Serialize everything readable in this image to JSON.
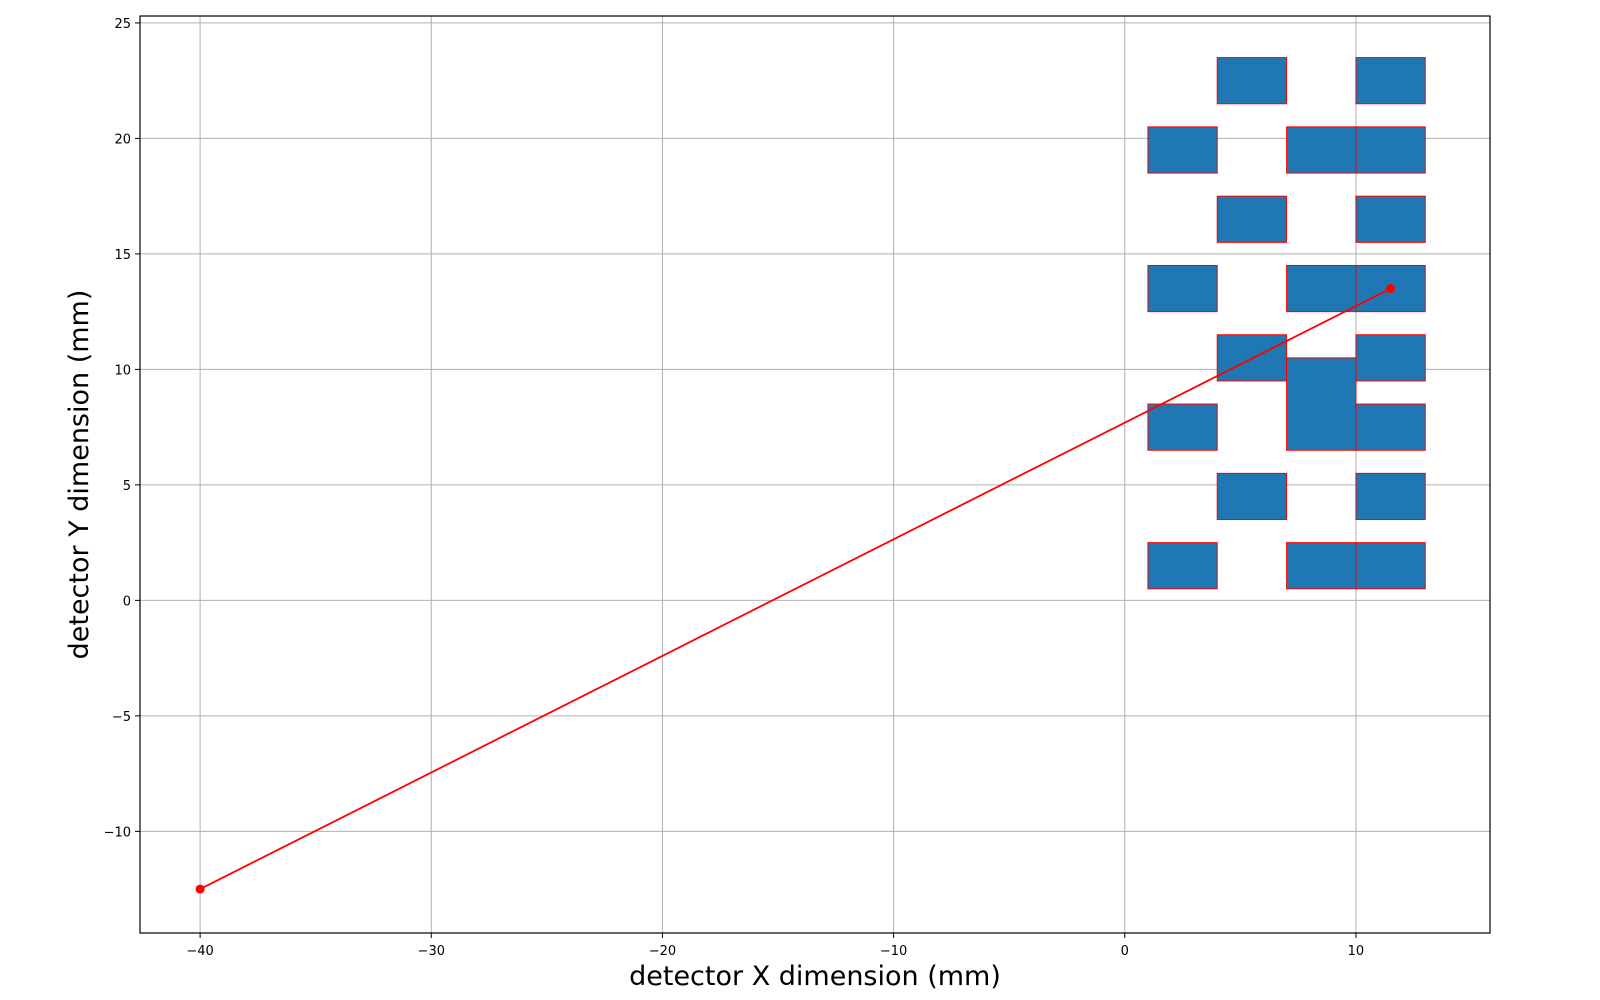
{
  "chart_data": {
    "type": "scatter",
    "title": "",
    "xlabel": "detector X dimension (mm)",
    "ylabel": "detector Y dimension (mm)",
    "xlim": [
      -42.6,
      15.8
    ],
    "ylim": [
      -14.4,
      25.3
    ],
    "grid": true,
    "xticks": [
      {
        "value": -40,
        "label": "−40"
      },
      {
        "value": -30,
        "label": "−30"
      },
      {
        "value": -20,
        "label": "−20"
      },
      {
        "value": -10,
        "label": "−10"
      },
      {
        "value": 0,
        "label": "0"
      },
      {
        "value": 10,
        "label": "10"
      }
    ],
    "yticks": [
      {
        "value": -10,
        "label": "−10"
      },
      {
        "value": -5,
        "label": "−5"
      },
      {
        "value": 0,
        "label": "0"
      },
      {
        "value": 5,
        "label": "5"
      },
      {
        "value": 10,
        "label": "10"
      },
      {
        "value": 15,
        "label": "15"
      },
      {
        "value": 20,
        "label": "20"
      },
      {
        "value": 25,
        "label": "25"
      }
    ],
    "rect_fill": "#1f77b4",
    "rect_edge": "#ff0000",
    "line_color": "#ff0000",
    "rectangles": [
      {
        "x0": 4,
        "x1": 7,
        "y0": 21.5,
        "y1": 23.5
      },
      {
        "x0": 10,
        "x1": 13,
        "y0": 21.5,
        "y1": 23.5
      },
      {
        "x0": 1,
        "x1": 4,
        "y0": 18.5,
        "y1": 20.5
      },
      {
        "x0": 7,
        "x1": 10,
        "y0": 18.5,
        "y1": 20.5
      },
      {
        "x0": 10,
        "x1": 13,
        "y0": 18.5,
        "y1": 20.5
      },
      {
        "x0": 4,
        "x1": 7,
        "y0": 15.5,
        "y1": 17.5
      },
      {
        "x0": 10,
        "x1": 13,
        "y0": 15.5,
        "y1": 17.5
      },
      {
        "x0": 1,
        "x1": 4,
        "y0": 12.5,
        "y1": 14.5
      },
      {
        "x0": 7,
        "x1": 10,
        "y0": 12.5,
        "y1": 14.5
      },
      {
        "x0": 10,
        "x1": 13,
        "y0": 12.5,
        "y1": 14.5
      },
      {
        "x0": 4,
        "x1": 7,
        "y0": 9.5,
        "y1": 11.5
      },
      {
        "x0": 10,
        "x1": 13,
        "y0": 9.5,
        "y1": 11.5
      },
      {
        "x0": 7,
        "x1": 10,
        "y0": 6.5,
        "y1": 10.5
      },
      {
        "x0": 1,
        "x1": 4,
        "y0": 6.5,
        "y1": 8.5
      },
      {
        "x0": 10,
        "x1": 13,
        "y0": 6.5,
        "y1": 8.5
      },
      {
        "x0": 4,
        "x1": 7,
        "y0": 3.5,
        "y1": 5.5
      },
      {
        "x0": 10,
        "x1": 13,
        "y0": 3.5,
        "y1": 5.5
      },
      {
        "x0": 1,
        "x1": 4,
        "y0": 0.5,
        "y1": 2.5
      },
      {
        "x0": 7,
        "x1": 10,
        "y0": 0.5,
        "y1": 2.5
      },
      {
        "x0": 10,
        "x1": 13,
        "y0": 0.5,
        "y1": 2.5
      }
    ],
    "line": {
      "points": [
        {
          "x": -40,
          "y": -12.5
        },
        {
          "x": 11.5,
          "y": 13.5
        }
      ]
    }
  }
}
